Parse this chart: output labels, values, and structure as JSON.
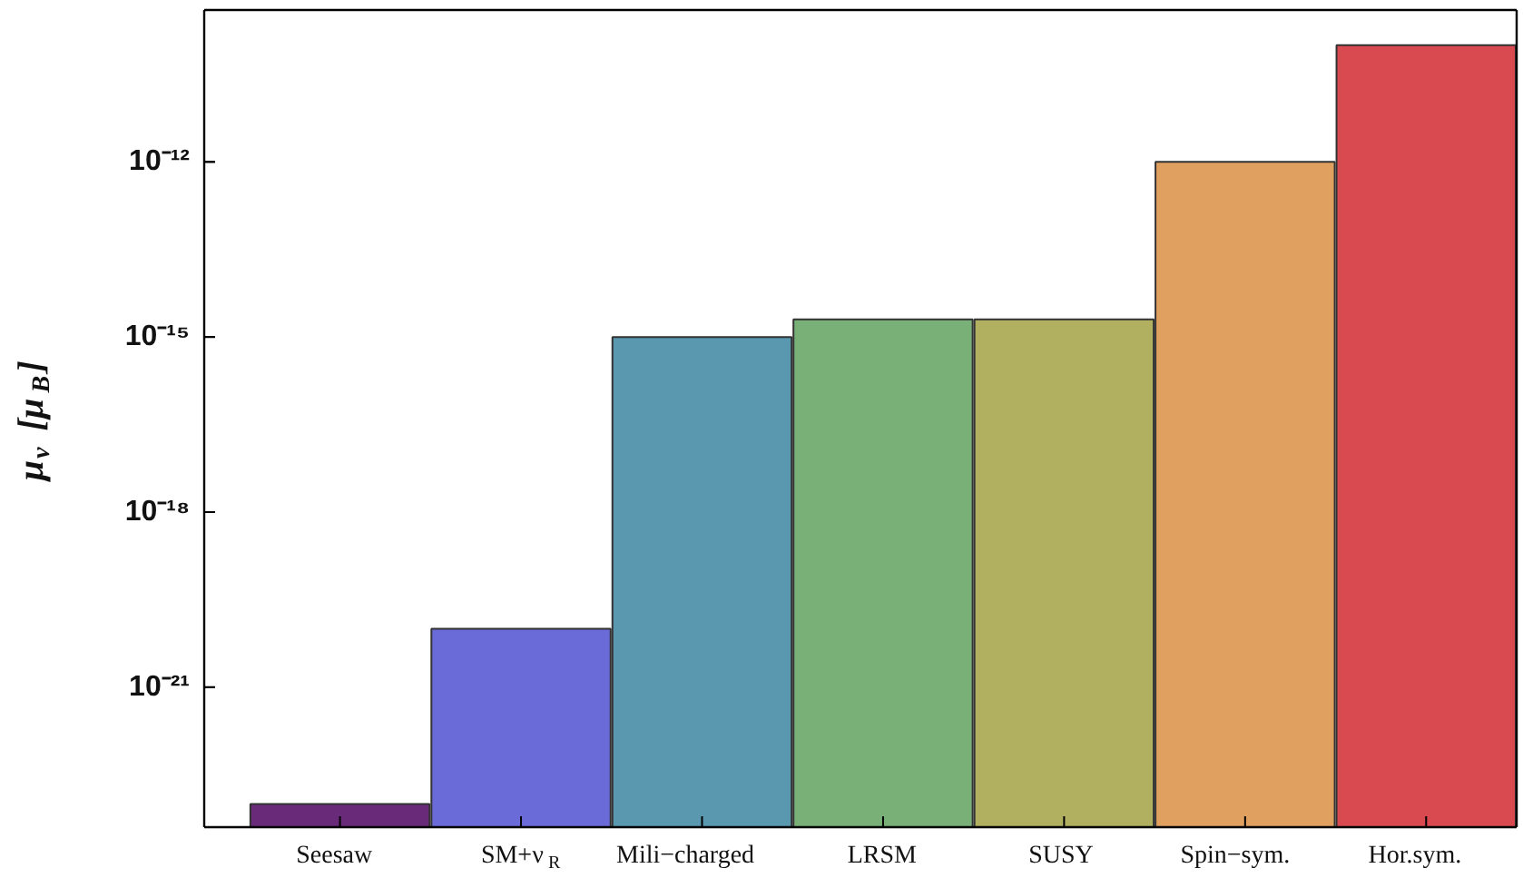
{
  "chart_data": {
    "type": "bar",
    "ylabel": "μ$_{ν}$ [μ$_{B}$]",
    "categories": [
      "Seesaw",
      "SM+ν$_{R}$",
      "Mili−charged",
      "LRSM",
      "SUSY",
      "Spin−sym.",
      "Hor.sym."
    ],
    "values": [
      1e-23,
      1e-20,
      1e-15,
      2e-15,
      2e-15,
      1e-12,
      1e-10
    ],
    "colors": [
      "#6a2a7a",
      "#6a6ad8",
      "#5a98b0",
      "#78b078",
      "#b0b060",
      "#e0a060",
      "#d84a50"
    ],
    "log": true,
    "ylim": [
      4e-24,
      4e-10
    ],
    "yticks": [
      {
        "value": 1e-21,
        "label": "10⁻²¹"
      },
      {
        "value": 1e-18,
        "label": "10⁻¹⁸"
      },
      {
        "value": 1e-15,
        "label": "10⁻¹⁵"
      },
      {
        "value": 1e-12,
        "label": "10⁻¹²"
      }
    ],
    "grid": false
  }
}
